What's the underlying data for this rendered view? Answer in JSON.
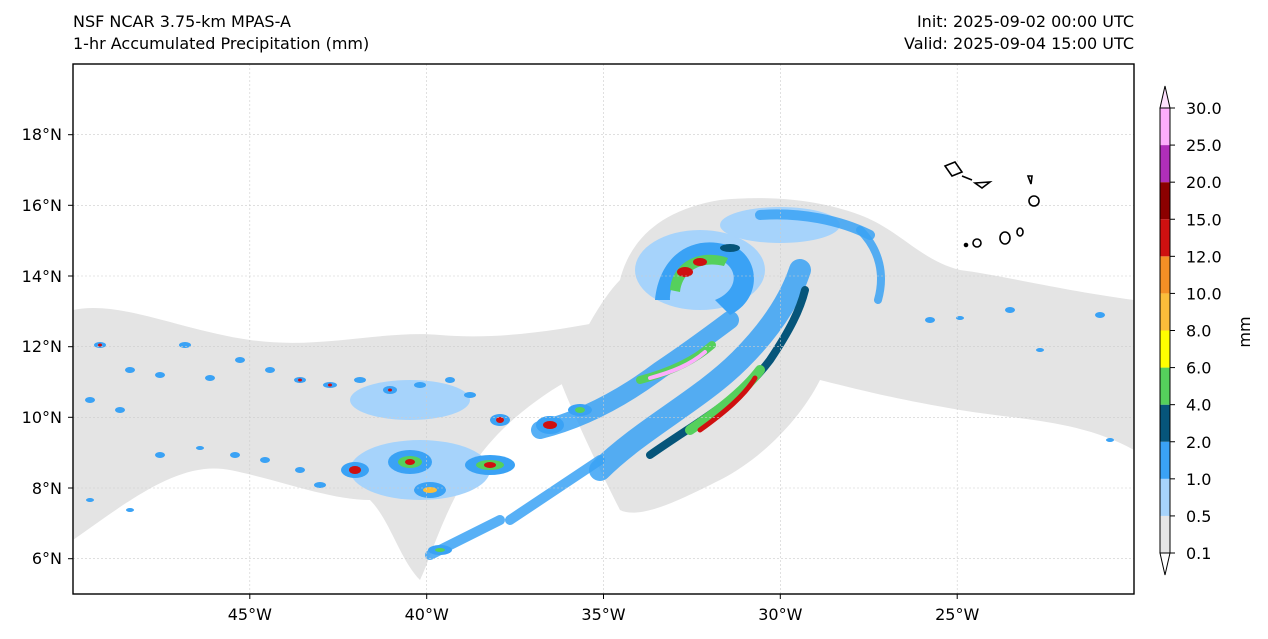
{
  "header": {
    "model": "NSF NCAR 3.75-km MPAS-A",
    "field": "1-hr Accumulated Precipitation (mm)",
    "init": "Init: 2025-09-02 00:00 UTC",
    "valid": "Valid: 2025-09-04 15:00 UTC"
  },
  "map": {
    "lon_range": [
      -50,
      -20
    ],
    "lat_range": [
      5,
      20
    ],
    "lon_ticks": [
      "45°W",
      "40°W",
      "35°W",
      "30°W",
      "25°W"
    ],
    "lat_ticks": [
      "6°N",
      "8°N",
      "10°N",
      "12°N",
      "14°N",
      "16°N",
      "18°N"
    ],
    "gridlines": true,
    "islands": "Cape Verde outlines, upper right"
  },
  "colorbar": {
    "unit": "mm",
    "levels": [
      "0.1",
      "0.5",
      "1.0",
      "2.0",
      "4.0",
      "6.0",
      "8.0",
      "10.0",
      "12.0",
      "15.0",
      "20.0",
      "25.0",
      "30.0"
    ],
    "colors": [
      "#e6e6e6",
      "#a6d3fb",
      "#3aa2f5",
      "#06557a",
      "#55d05c",
      "#ffff00",
      "#fbbd3a",
      "#f48f25",
      "#cf1010",
      "#8b0000",
      "#b02eb9",
      "#fcaefb"
    ],
    "under_color": "#ffffff",
    "over_color": "#fde0fd"
  }
}
